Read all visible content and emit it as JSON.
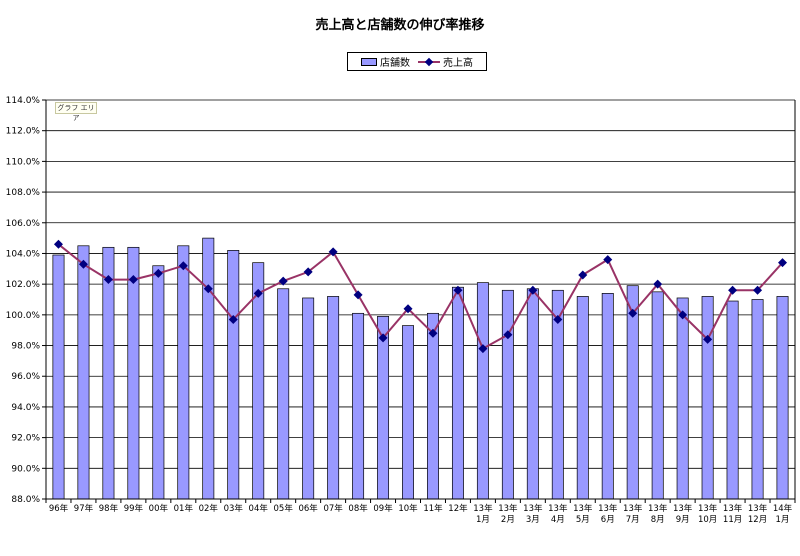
{
  "chart_data": {
    "type": "bar",
    "title": "売上高と店舗数の伸び率推移",
    "area_tag": "グラフ エリア",
    "ylim": [
      88.0,
      114.0
    ],
    "y_ticks": [
      "88.0%",
      "90.0%",
      "92.0%",
      "94.0%",
      "96.0%",
      "98.0%",
      "100.0%",
      "102.0%",
      "104.0%",
      "106.0%",
      "108.0%",
      "110.0%",
      "112.0%",
      "114.0%"
    ],
    "y_tick_values": [
      88,
      90,
      92,
      94,
      96,
      98,
      100,
      102,
      104,
      106,
      108,
      110,
      112,
      114
    ],
    "grid": true,
    "legend_position": "top-center",
    "categories": [
      {
        "l1": "96年",
        "l2": ""
      },
      {
        "l1": "97年",
        "l2": ""
      },
      {
        "l1": "98年",
        "l2": ""
      },
      {
        "l1": "99年",
        "l2": ""
      },
      {
        "l1": "00年",
        "l2": ""
      },
      {
        "l1": "01年",
        "l2": ""
      },
      {
        "l1": "02年",
        "l2": ""
      },
      {
        "l1": "03年",
        "l2": ""
      },
      {
        "l1": "04年",
        "l2": ""
      },
      {
        "l1": "05年",
        "l2": ""
      },
      {
        "l1": "06年",
        "l2": ""
      },
      {
        "l1": "07年",
        "l2": ""
      },
      {
        "l1": "08年",
        "l2": ""
      },
      {
        "l1": "09年",
        "l2": ""
      },
      {
        "l1": "10年",
        "l2": ""
      },
      {
        "l1": "11年",
        "l2": ""
      },
      {
        "l1": "12年",
        "l2": ""
      },
      {
        "l1": "13年",
        "l2": "1月"
      },
      {
        "l1": "13年",
        "l2": "2月"
      },
      {
        "l1": "13年",
        "l2": "3月"
      },
      {
        "l1": "13年",
        "l2": "4月"
      },
      {
        "l1": "13年",
        "l2": "5月"
      },
      {
        "l1": "13年",
        "l2": "6月"
      },
      {
        "l1": "13年",
        "l2": "7月"
      },
      {
        "l1": "13年",
        "l2": "8月"
      },
      {
        "l1": "13年",
        "l2": "9月"
      },
      {
        "l1": "13年",
        "l2": "10月"
      },
      {
        "l1": "13年",
        "l2": "11月"
      },
      {
        "l1": "13年",
        "l2": "12月"
      },
      {
        "l1": "14年",
        "l2": "1月"
      }
    ],
    "series": [
      {
        "name": "店舗数",
        "type": "bar",
        "color": "#9999ff",
        "values": [
          103.9,
          104.5,
          104.4,
          104.4,
          103.2,
          104.5,
          105.0,
          104.2,
          103.4,
          101.7,
          101.1,
          101.2,
          100.1,
          99.9,
          99.3,
          100.1,
          101.8,
          102.1,
          101.6,
          101.7,
          101.6,
          101.2,
          101.4,
          101.9,
          101.5,
          101.1,
          101.2,
          100.9,
          101.0,
          101.2
        ]
      },
      {
        "name": "売上高",
        "type": "line",
        "color": "#993366",
        "marker_color": "#000080",
        "values": [
          104.6,
          103.3,
          102.3,
          102.3,
          102.7,
          103.2,
          101.7,
          99.7,
          101.4,
          102.2,
          102.8,
          104.1,
          101.3,
          98.5,
          100.4,
          98.8,
          101.6,
          97.8,
          98.7,
          101.6,
          99.7,
          102.6,
          103.6,
          100.1,
          102.0,
          100.0,
          98.4,
          101.6,
          101.6,
          103.4
        ]
      }
    ]
  }
}
